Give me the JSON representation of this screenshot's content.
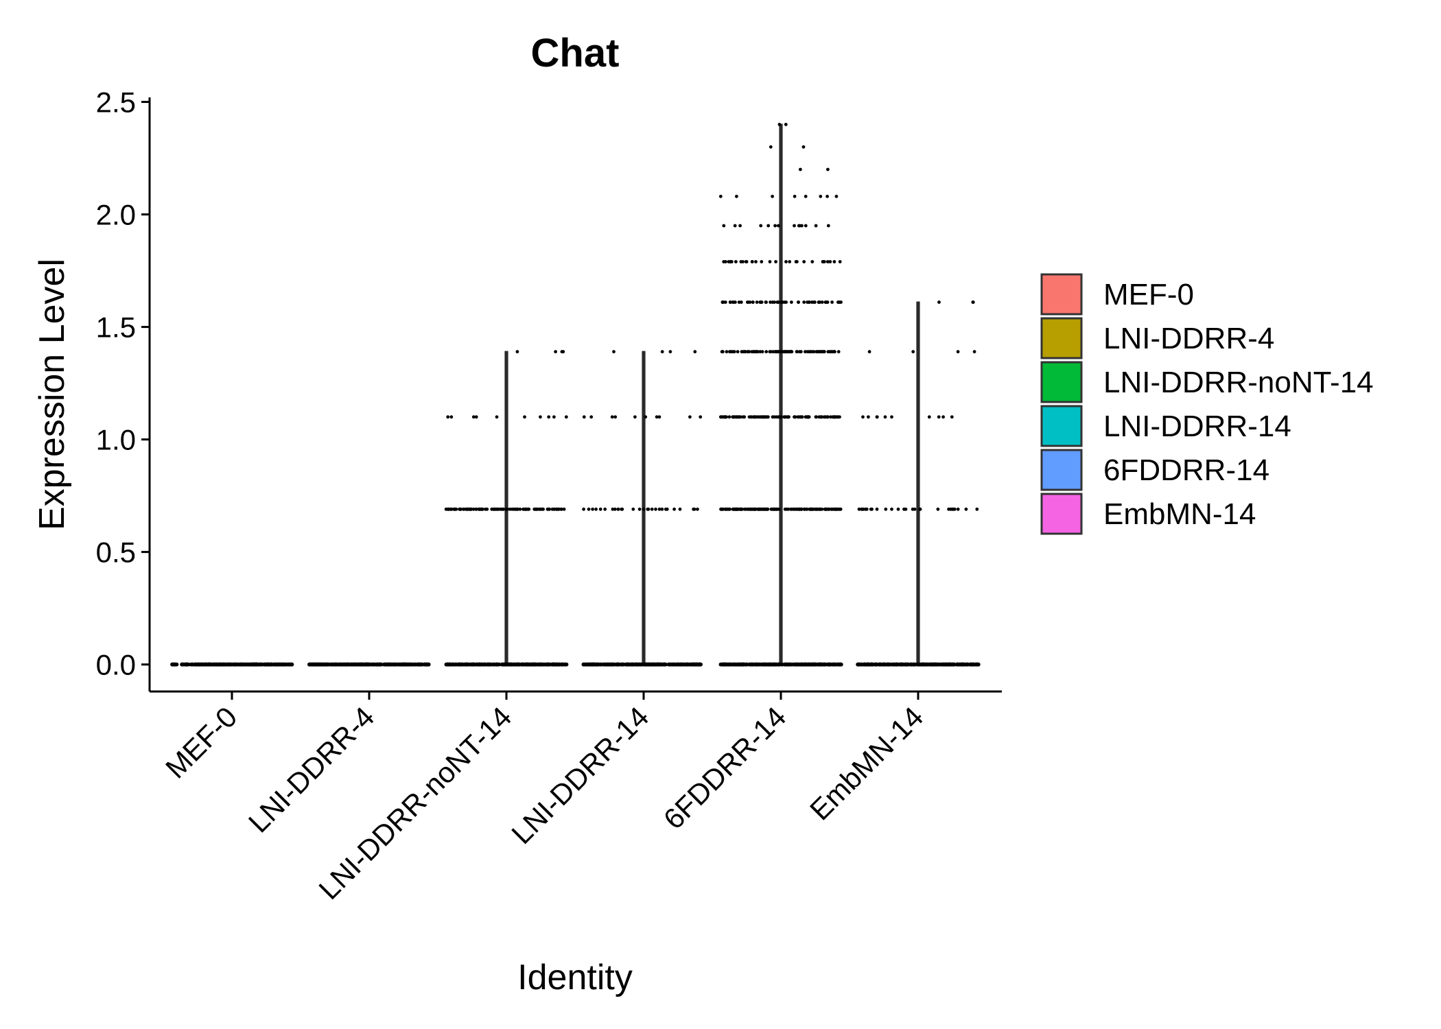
{
  "chart_data": {
    "type": "violin",
    "title": "Chat",
    "xlabel": "Identity",
    "ylabel": "Expression Level",
    "ylim": [
      -0.12,
      2.52
    ],
    "yticks": [
      "0.0",
      "0.5",
      "1.0",
      "1.5",
      "2.0",
      "2.5"
    ],
    "categories": [
      "MEF-0",
      "LNI-DDRR-4",
      "LNI-DDRR-noNT-14",
      "LNI-DDRR-14",
      "6FDDRR-14",
      "EmbMN-14"
    ],
    "colors": [
      "#F8766D",
      "#B79F00",
      "#00BA38",
      "#00BFC4",
      "#619CFF",
      "#F564E3"
    ],
    "violin_max": [
      0.0,
      0.0,
      1.39,
      1.39,
      2.4,
      1.61
    ],
    "point_levels": [
      [
        0.0
      ],
      [
        0.0
      ],
      [
        0.0,
        0.69,
        1.1,
        1.39
      ],
      [
        0.0,
        0.69,
        1.1,
        1.39
      ],
      [
        0.0,
        0.69,
        1.1,
        1.39,
        1.61,
        1.79,
        1.95,
        2.08,
        2.2,
        2.3,
        2.4
      ],
      [
        0.0,
        0.69,
        1.1,
        1.39,
        1.61
      ]
    ],
    "legend": {
      "position": "right",
      "entries": [
        "MEF-0",
        "LNI-DDRR-4",
        "LNI-DDRR-noNT-14",
        "LNI-DDRR-14",
        "6FDDRR-14",
        "EmbMN-14"
      ]
    },
    "grid": false
  }
}
